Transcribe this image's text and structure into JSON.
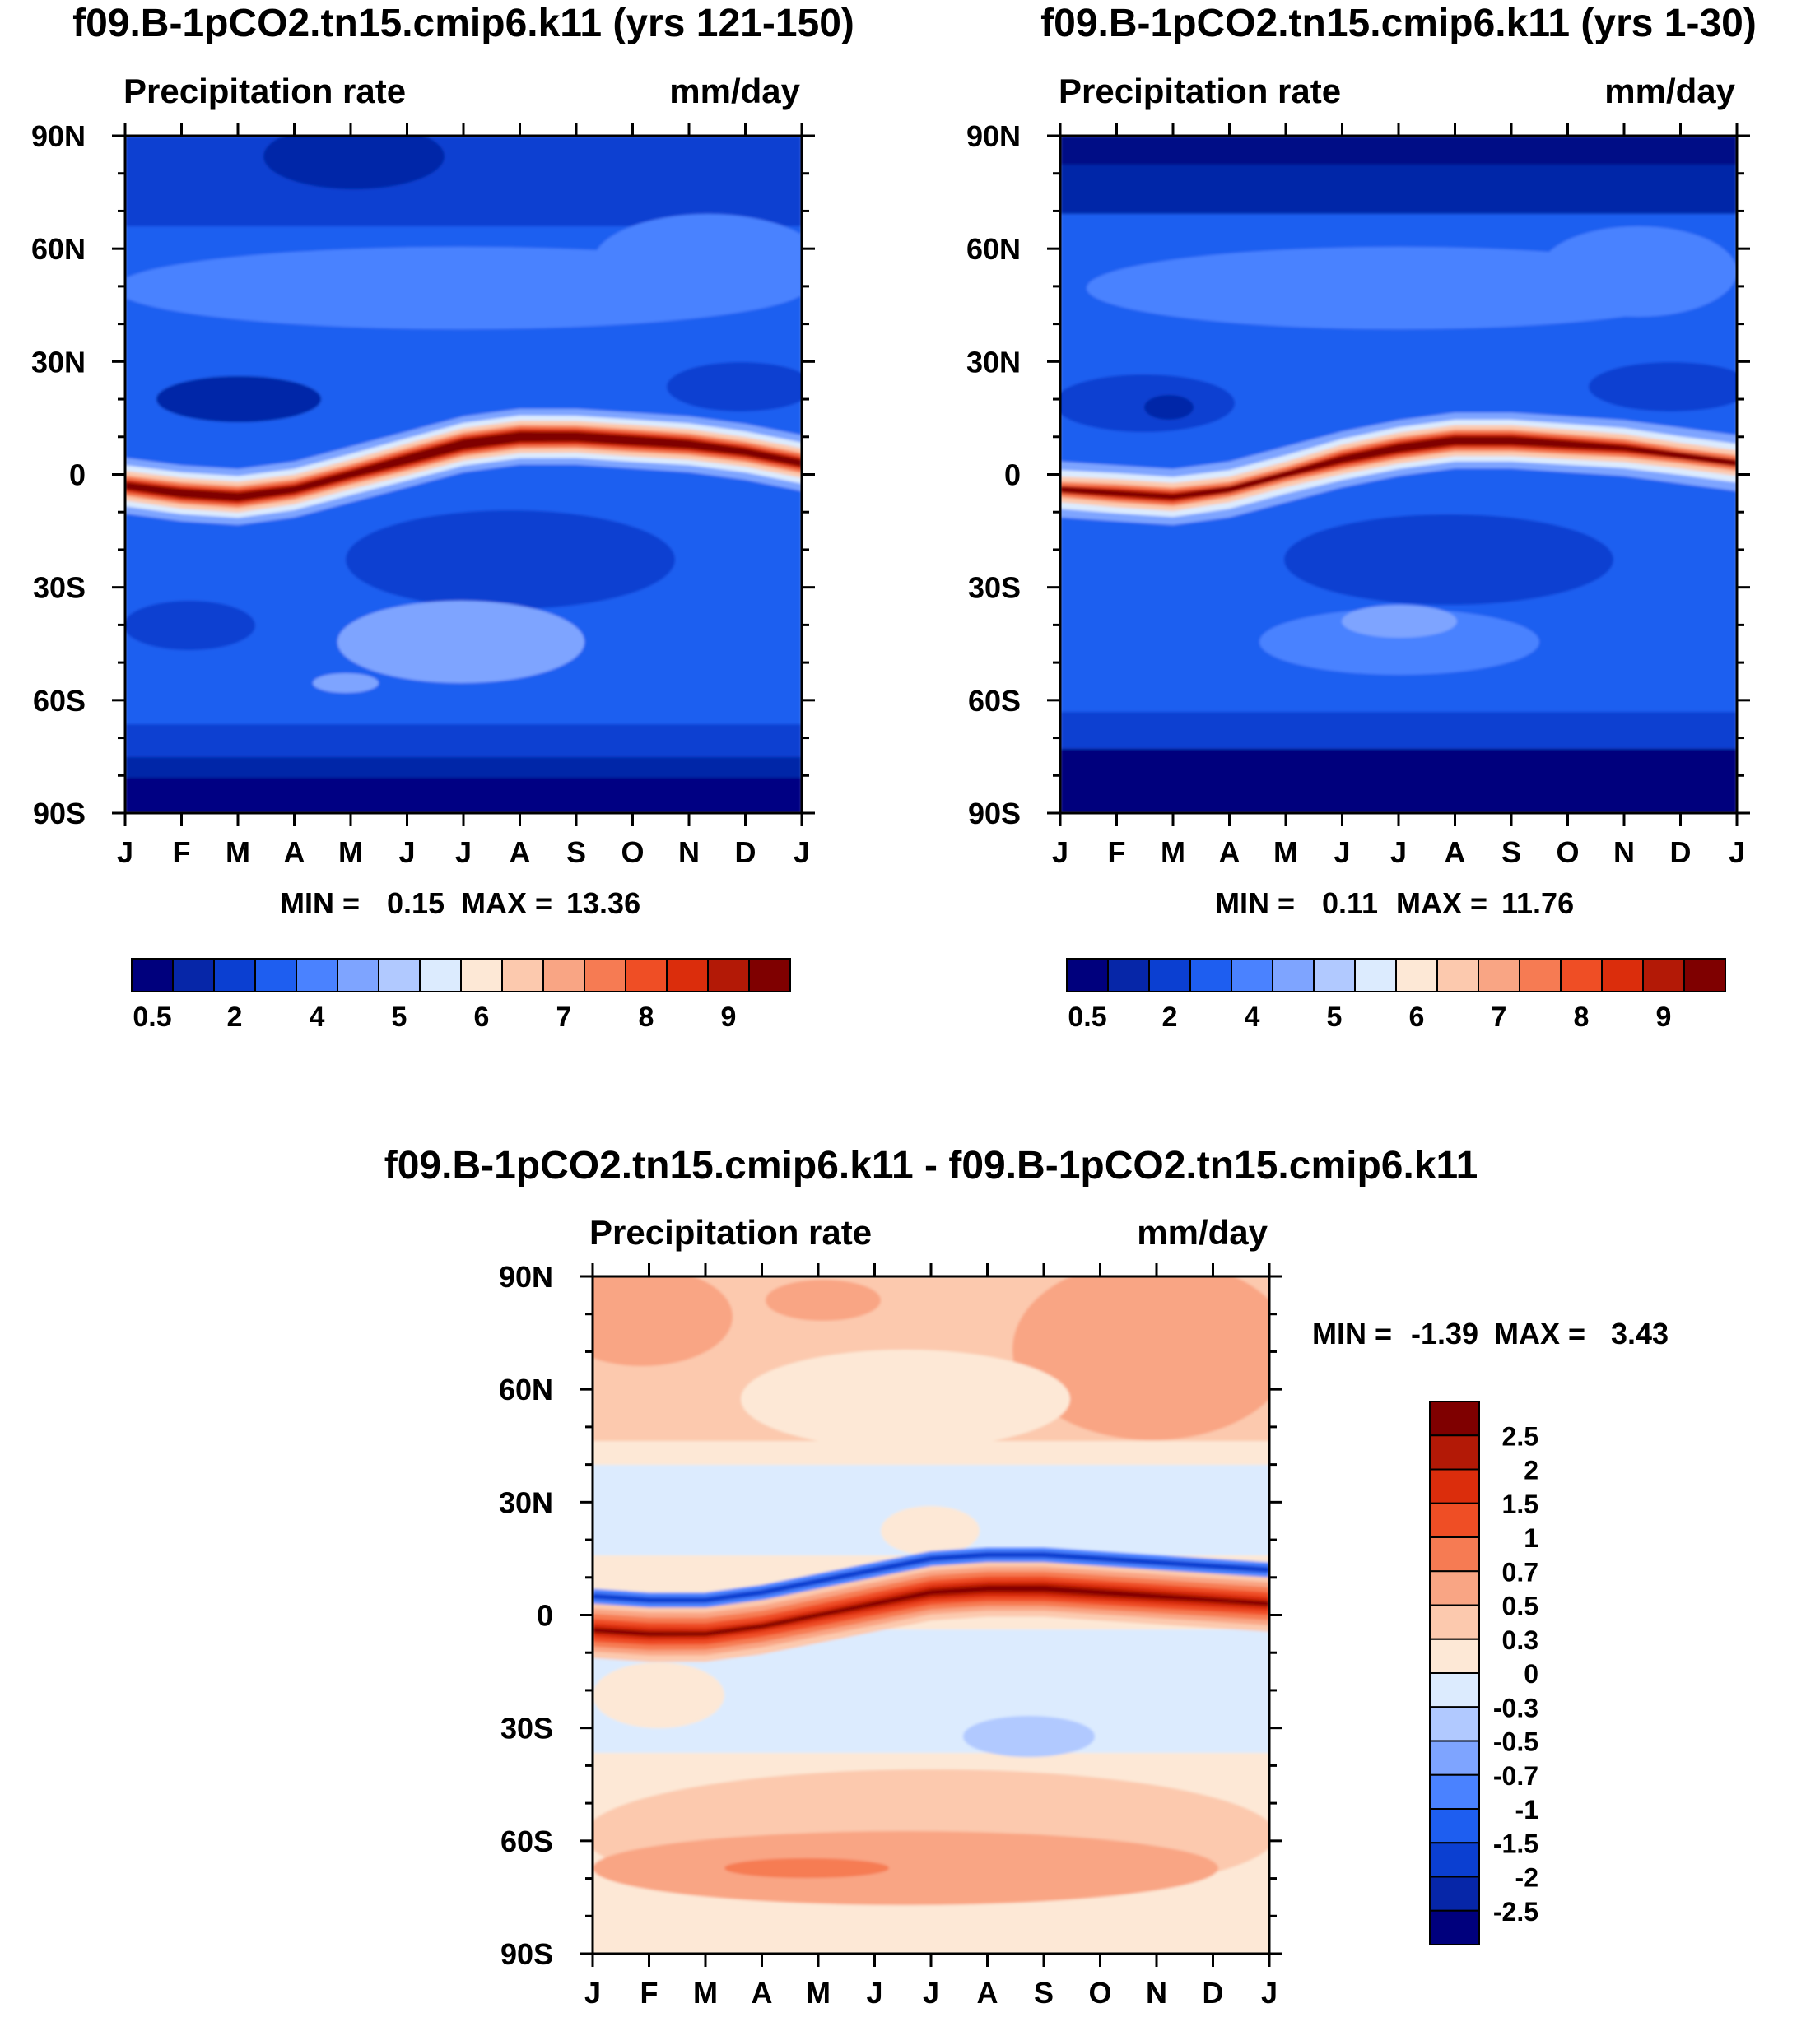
{
  "chart_data": [
    {
      "type": "heatmap",
      "title": "f09.B-1pCO2.tn15.cmip6.k11 (yrs 121-150)",
      "left_label": "Precipitation rate",
      "units": "mm/day",
      "x_ticks": [
        "J",
        "F",
        "M",
        "A",
        "M",
        "J",
        "J",
        "A",
        "S",
        "O",
        "N",
        "D",
        "J"
      ],
      "y_ticks": [
        "90N",
        "60N",
        "30N",
        "0",
        "30S",
        "60S",
        "90S"
      ],
      "y_values": [
        90,
        60,
        30,
        0,
        -30,
        -60,
        -90
      ],
      "min_label": "MIN =",
      "min_value": "0.15",
      "max_label": "MAX =",
      "max_value": "13.36",
      "levels": [
        0.5,
        1,
        2,
        3,
        4,
        4.5,
        5,
        5.5,
        6,
        6.5,
        7,
        7.5,
        8,
        8.5,
        9
      ],
      "level_labels": [
        "0.5",
        "2",
        "4",
        "5",
        "6",
        "7",
        "8",
        "9"
      ],
      "colors": [
        "#00007d",
        "#0626a8",
        "#0b3fd1",
        "#1e5ef0",
        "#4a82ff",
        "#7ea4ff",
        "#b1c9ff",
        "#dcebfe",
        "#fde8d6",
        "#fcc9ae",
        "#f9a584",
        "#f67b53",
        "#ef4e25",
        "#db2d0c",
        "#b31906",
        "#7f0000"
      ],
      "itcz_lat": [
        -3,
        -5,
        -6,
        -4,
        0,
        4,
        8,
        10,
        10,
        9,
        8,
        6,
        3
      ],
      "itcz_peak": [
        10,
        11,
        11,
        10,
        10,
        12,
        13,
        13,
        12,
        12,
        11,
        10,
        10
      ]
    },
    {
      "type": "heatmap",
      "title": "f09.B-1pCO2.tn15.cmip6.k11 (yrs 1-30)",
      "left_label": "Precipitation rate",
      "units": "mm/day",
      "x_ticks": [
        "J",
        "F",
        "M",
        "A",
        "M",
        "J",
        "J",
        "A",
        "S",
        "O",
        "N",
        "D",
        "J"
      ],
      "y_ticks": [
        "90N",
        "60N",
        "30N",
        "0",
        "30S",
        "60S",
        "90S"
      ],
      "y_values": [
        90,
        60,
        30,
        0,
        -30,
        -60,
        -90
      ],
      "min_label": "MIN =",
      "min_value": "0.11",
      "max_label": "MAX =",
      "max_value": "11.76",
      "levels": [
        0.5,
        1,
        2,
        3,
        4,
        4.5,
        5,
        5.5,
        6,
        6.5,
        7,
        7.5,
        8,
        8.5,
        9
      ],
      "level_labels": [
        "0.5",
        "2",
        "4",
        "5",
        "6",
        "7",
        "8",
        "9"
      ],
      "colors": [
        "#00007d",
        "#0626a8",
        "#0b3fd1",
        "#1e5ef0",
        "#4a82ff",
        "#7ea4ff",
        "#b1c9ff",
        "#dcebfe",
        "#fde8d6",
        "#fcc9ae",
        "#f9a584",
        "#f67b53",
        "#ef4e25",
        "#db2d0c",
        "#b31906",
        "#7f0000"
      ],
      "itcz_lat": [
        -4,
        -5,
        -6,
        -4,
        0,
        4,
        7,
        9,
        9,
        8,
        7,
        5,
        3
      ],
      "itcz_peak": [
        8,
        9,
        9,
        8,
        8,
        10,
        11,
        11,
        11,
        10,
        9,
        8,
        8
      ]
    },
    {
      "type": "heatmap",
      "title": "f09.B-1pCO2.tn15.cmip6.k11 - f09.B-1pCO2.tn15.cmip6.k11",
      "left_label": "Precipitation rate",
      "units": "mm/day",
      "x_ticks": [
        "J",
        "F",
        "M",
        "A",
        "M",
        "J",
        "J",
        "A",
        "S",
        "O",
        "N",
        "D",
        "J"
      ],
      "y_ticks": [
        "90N",
        "60N",
        "30N",
        "0",
        "30S",
        "60S",
        "90S"
      ],
      "y_values": [
        90,
        60,
        30,
        0,
        -30,
        -60,
        -90
      ],
      "min_label": "MIN =",
      "min_value": "-1.39",
      "max_label": "MAX =",
      "max_value": "3.43",
      "levels": [
        -2.5,
        -2,
        -1.5,
        -1,
        -0.7,
        -0.5,
        -0.3,
        0,
        0.3,
        0.5,
        0.7,
        1,
        1.5,
        2,
        2.5
      ],
      "level_labels": [
        "2.5",
        "2",
        "1.5",
        "1",
        "0.7",
        "0.5",
        "0.3",
        "0",
        "-0.3",
        "-0.5",
        "-0.7",
        "-1",
        "-1.5",
        "-2",
        "-2.5"
      ],
      "colors": [
        "#00007d",
        "#0626a8",
        "#0b3fd1",
        "#1e5ef0",
        "#4a82ff",
        "#7ea4ff",
        "#b1c9ff",
        "#dcebfe",
        "#fde8d6",
        "#fcc9ae",
        "#f9a584",
        "#f67b53",
        "#ef4e25",
        "#db2d0c",
        "#b31906",
        "#7f0000"
      ],
      "itcz_lat": [
        -4,
        -5,
        -5,
        -3,
        0,
        3,
        6,
        7,
        7,
        6,
        5,
        4,
        3
      ],
      "itcz_peak": [
        2.2,
        2.2,
        2.0,
        1.8,
        2.0,
        2.3,
        2.7,
        3.0,
        3.2,
        3.0,
        2.7,
        2.4,
        2.2
      ]
    }
  ]
}
